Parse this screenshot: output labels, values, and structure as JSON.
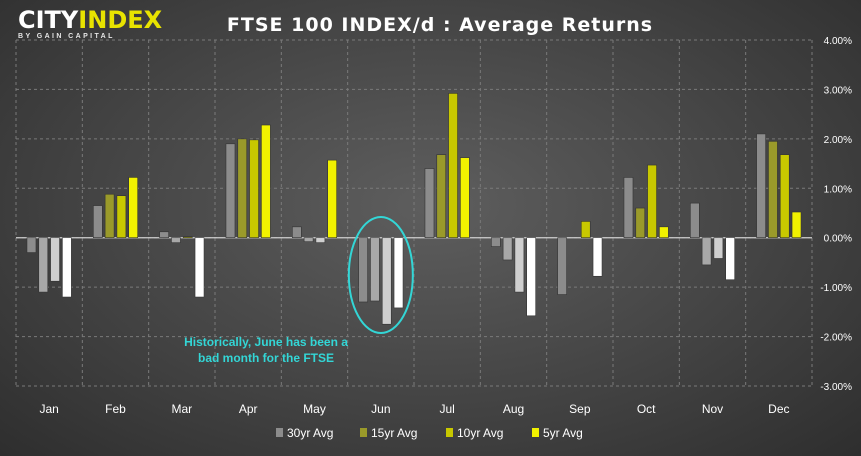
{
  "logo": {
    "name_a": "CITY",
    "name_b": "INDEX",
    "tagline": "BY GAIN CAPITAL"
  },
  "chart_data": {
    "type": "bar",
    "title": "FTSE 100 INDEX/d : Average Returns",
    "categories": [
      "Jan",
      "Feb",
      "Mar",
      "Apr",
      "May",
      "Jun",
      "Jul",
      "Aug",
      "Sep",
      "Oct",
      "Nov",
      "Dec"
    ],
    "series": [
      {
        "name": "30yr Avg",
        "color": "#8c8c8c",
        "neg_color": "#8c8c8c",
        "values": [
          -0.3,
          0.65,
          0.12,
          1.9,
          0.22,
          -1.3,
          1.4,
          -0.18,
          -1.15,
          1.22,
          0.7,
          2.1
        ]
      },
      {
        "name": "15yr Avg",
        "color": "#9a9a2a",
        "neg_color": "#a8a8a8",
        "values": [
          -1.1,
          0.88,
          -0.1,
          2.0,
          -0.08,
          -1.28,
          1.68,
          -0.45,
          0.0,
          0.6,
          -0.55,
          1.95
        ]
      },
      {
        "name": "10yr Avg",
        "color": "#c8c800",
        "neg_color": "#cfcfcf",
        "values": [
          -0.88,
          0.85,
          0.02,
          1.98,
          -0.1,
          -1.75,
          2.92,
          -1.1,
          0.33,
          1.47,
          -0.42,
          1.68
        ]
      },
      {
        "name": "5yr Avg",
        "color": "#f2f200",
        "neg_color": "#ffffff",
        "values": [
          -1.2,
          1.22,
          -1.2,
          2.28,
          1.57,
          -1.42,
          1.62,
          -1.58,
          -0.78,
          0.22,
          -0.85,
          0.52
        ]
      }
    ],
    "ylim": [
      -3.0,
      4.0
    ],
    "yticks": [
      4.0,
      3.0,
      2.0,
      1.0,
      0.0,
      -1.0,
      -2.0,
      -3.0
    ],
    "ytick_labels": [
      "4.00%",
      "3.00%",
      "2.00%",
      "1.00%",
      "0.00%",
      "-1.00%",
      "-2.00%",
      "-3.00%"
    ],
    "grid": true,
    "legend_position": "bottom-center",
    "annotation": {
      "lines": [
        "Historically, June has been a",
        "bad month for the FTSE"
      ],
      "color": "#33d6d6",
      "target_category": "Jun"
    }
  }
}
